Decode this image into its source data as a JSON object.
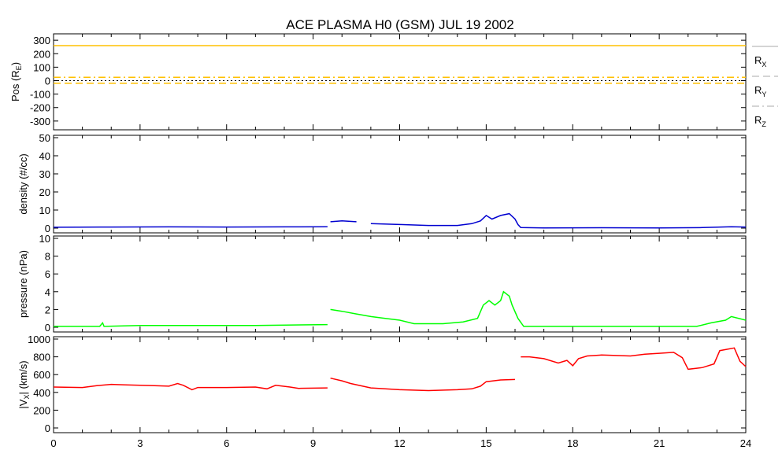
{
  "chart_data": {
    "type": "line",
    "title": "ACE PLASMA H0 (GSM)   JUL 19 2002",
    "x_ticks": [
      "0",
      "3",
      "6",
      "9",
      "12",
      "15",
      "18",
      "21",
      "24"
    ],
    "xlim": [
      0,
      24
    ],
    "panels": [
      {
        "id": "pos",
        "ylabel": "Pos (R",
        "ylabel_sub": "E",
        "ylabel_end": ")",
        "ylim": [
          -330,
          330
        ],
        "y_ticks": [
          300,
          200,
          100,
          0,
          -100,
          -200,
          -300
        ],
        "zero_line": true,
        "legend": [
          {
            "label": "R",
            "sub": "X",
            "style": "solid"
          },
          {
            "label": "R",
            "sub": "Y",
            "style": "dash"
          },
          {
            "label": "R",
            "sub": "Z",
            "style": "dashdot"
          }
        ],
        "series": [
          {
            "name": "Rx",
            "color": "#ffc000",
            "style": "solid",
            "points": [
              [
                0,
                260
              ],
              [
                24,
                260
              ]
            ]
          },
          {
            "name": "Ry",
            "color": "#ffc000",
            "style": "dash",
            "points": [
              [
                0,
                -20
              ],
              [
                24,
                -20
              ]
            ]
          },
          {
            "name": "Rz",
            "color": "#ffc000",
            "style": "dashdot",
            "points": [
              [
                0,
                25
              ],
              [
                24,
                25
              ]
            ]
          }
        ]
      },
      {
        "id": "density",
        "ylabel": "density (#/cc)",
        "ylim": [
          0,
          50
        ],
        "y_ticks": [
          50,
          40,
          30,
          20,
          10,
          0
        ],
        "series": [
          {
            "name": "density",
            "color": "#0000d0",
            "points": [
              [
                0,
                0.5
              ],
              [
                2,
                0.6
              ],
              [
                4,
                0.7
              ],
              [
                6,
                0.6
              ],
              [
                8,
                0.7
              ],
              [
                9.5,
                0.8
              ],
              null,
              [
                9.6,
                3.5
              ],
              [
                10,
                4
              ],
              [
                10.5,
                3.5
              ],
              null,
              [
                11,
                2.5
              ],
              [
                12,
                2
              ],
              [
                13,
                1.5
              ],
              [
                14,
                1.5
              ],
              [
                14.5,
                2.5
              ],
              [
                14.8,
                4
              ],
              [
                15,
                7
              ],
              [
                15.2,
                5
              ],
              [
                15.5,
                7
              ],
              [
                15.8,
                8
              ],
              [
                16,
                5
              ],
              [
                16.1,
                2
              ],
              [
                16.2,
                0.3
              ],
              [
                17,
                0.1
              ],
              [
                19,
                0.2
              ],
              [
                21,
                0.1
              ],
              [
                22.5,
                0.3
              ],
              [
                23.5,
                0.8
              ],
              [
                24,
                0.6
              ]
            ]
          }
        ]
      },
      {
        "id": "pressure",
        "ylabel": "pressure (nPa)",
        "ylim": [
          0,
          10
        ],
        "y_ticks": [
          10,
          8,
          6,
          4,
          2,
          0
        ],
        "series": [
          {
            "name": "pressure",
            "color": "#00ff00",
            "points": [
              [
                0,
                0.1
              ],
              [
                1.6,
                0.1
              ],
              [
                1.7,
                0.5
              ],
              [
                1.75,
                0.1
              ],
              [
                3,
                0.2
              ],
              [
                5,
                0.2
              ],
              [
                7,
                0.2
              ],
              [
                9.5,
                0.3
              ],
              null,
              [
                9.6,
                2
              ],
              [
                10,
                1.8
              ],
              [
                10.5,
                1.5
              ],
              [
                11,
                1.2
              ],
              [
                11.5,
                1
              ],
              [
                12,
                0.8
              ],
              [
                12.5,
                0.4
              ],
              [
                13.5,
                0.4
              ],
              [
                14.2,
                0.6
              ],
              [
                14.7,
                1
              ],
              [
                14.9,
                2.5
              ],
              [
                15.1,
                3
              ],
              [
                15.3,
                2.5
              ],
              [
                15.5,
                3
              ],
              [
                15.6,
                4
              ],
              [
                15.8,
                3.5
              ],
              [
                15.9,
                2.5
              ],
              [
                16.1,
                1
              ],
              [
                16.3,
                0.1
              ],
              [
                18,
                0.1
              ],
              [
                20,
                0.1
              ],
              [
                22.3,
                0.1
              ],
              [
                22.8,
                0.5
              ],
              [
                23.3,
                0.8
              ],
              [
                23.5,
                1.2
              ],
              [
                24,
                0.8
              ]
            ]
          }
        ]
      },
      {
        "id": "vx",
        "ylabel": "|V",
        "ylabel_sub": "X",
        "ylabel_end": "| (km/s)",
        "ylim": [
          0,
          1000
        ],
        "y_ticks": [
          1000,
          800,
          600,
          400,
          200,
          0
        ],
        "series": [
          {
            "name": "|Vx|",
            "color": "#ff0000",
            "points": [
              [
                0,
                460
              ],
              [
                1,
                455
              ],
              [
                1.5,
                475
              ],
              [
                2,
                490
              ],
              [
                2.5,
                485
              ],
              [
                3,
                480
              ],
              [
                3.5,
                475
              ],
              [
                4,
                470
              ],
              [
                4.3,
                500
              ],
              [
                4.5,
                480
              ],
              [
                4.8,
                430
              ],
              [
                5,
                455
              ],
              [
                6,
                455
              ],
              [
                7,
                460
              ],
              [
                7.4,
                440
              ],
              [
                7.7,
                480
              ],
              [
                8.2,
                460
              ],
              [
                8.5,
                445
              ],
              [
                9.5,
                450
              ],
              null,
              [
                9.6,
                560
              ],
              [
                10,
                530
              ],
              [
                10.3,
                500
              ],
              [
                11,
                450
              ],
              [
                12,
                430
              ],
              [
                13,
                420
              ],
              [
                14,
                430
              ],
              [
                14.5,
                440
              ],
              [
                14.8,
                470
              ],
              [
                15,
                520
              ],
              [
                15.5,
                540
              ],
              [
                16,
                545
              ],
              null,
              [
                16.2,
                800
              ],
              [
                16.5,
                800
              ],
              [
                17,
                780
              ],
              [
                17.5,
                730
              ],
              [
                17.8,
                760
              ],
              [
                18,
                700
              ],
              [
                18.2,
                780
              ],
              [
                18.5,
                810
              ],
              [
                19,
                820
              ],
              [
                20,
                810
              ],
              [
                20.5,
                830
              ],
              [
                21,
                840
              ],
              [
                21.5,
                850
              ],
              [
                21.8,
                790
              ],
              [
                22,
                660
              ],
              [
                22.5,
                680
              ],
              [
                22.9,
                720
              ],
              [
                23.1,
                870
              ],
              [
                23.6,
                900
              ],
              [
                23.8,
                750
              ],
              [
                24,
                690
              ]
            ]
          }
        ]
      }
    ]
  }
}
